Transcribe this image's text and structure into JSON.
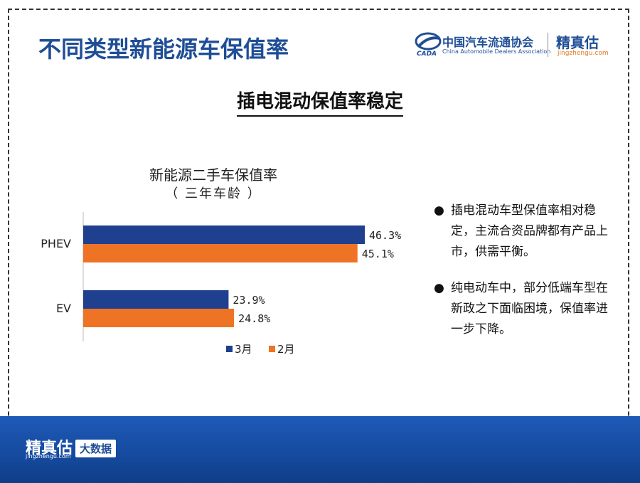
{
  "page": {
    "title": "不同类型新能源车保值率",
    "subtitle": "插电混动保值率稳定"
  },
  "logos": {
    "caada_cn": "中国汽车流通协会",
    "caada_en": "China Automobile Dealers Association",
    "caada_mark": "CADA",
    "jingzhengu_cn": "精真估",
    "jingzhengu_url": "jingzhengu.com"
  },
  "chart_data": {
    "type": "bar",
    "orientation": "horizontal",
    "title": "新能源二手车保值率",
    "subtitle": "（ 三年车龄 ）",
    "categories": [
      "PHEV",
      "EV"
    ],
    "series": [
      {
        "name": "3月",
        "values": [
          46.3,
          23.9
        ],
        "labels": [
          "46.3%",
          "23.9%"
        ],
        "color": "#1f3f8f"
      },
      {
        "name": "2月",
        "values": [
          45.1,
          24.8
        ],
        "labels": [
          "45.1%",
          "24.8%"
        ],
        "color": "#ee7324"
      }
    ],
    "xlim": [
      0,
      50
    ],
    "grid": false,
    "legend": "bottom"
  },
  "bullets": [
    "插电混动车型保值率相对稳定，主流合资品牌都有产品上市，供需平衡。",
    "纯电动车中，部分低端车型在新政之下面临困境，保值率进一步下降。"
  ],
  "footer": {
    "brand": "精真估",
    "url": "jingzhengu.com",
    "badge": "大数据"
  }
}
